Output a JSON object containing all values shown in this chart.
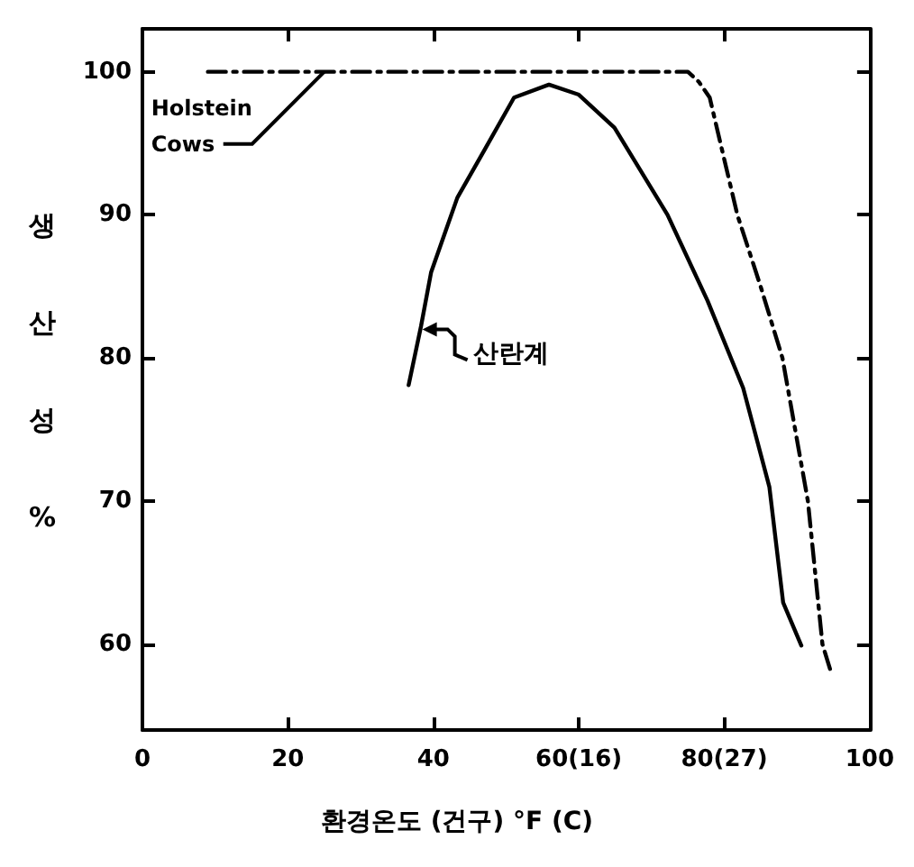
{
  "chart_data": {
    "type": "line",
    "xlabel": "환경온도 (건구) °F (C)",
    "ylabel": "생산성 %",
    "xlim": [
      0,
      100
    ],
    "xticks": [
      0,
      20,
      40,
      {
        "value": 60,
        "label": "60(16)"
      },
      {
        "value": 80,
        "label": "80(27)"
      },
      100
    ],
    "ylim": [
      54,
      103
    ],
    "yticks": [
      60,
      70,
      80,
      90,
      100
    ],
    "grid": false,
    "marker": "none",
    "series": [
      {
        "color": "#000000",
        "line_style": "dashed",
        "x": [
          9,
          75,
          76.5,
          78,
          81.8,
          85,
          88,
          91.5,
          93.5,
          94.7
        ],
        "values": [
          100,
          100,
          99.3,
          98.2,
          90,
          85,
          80,
          70,
          60,
          58
        ]
      },
      {
        "color": "#000000",
        "line_style": "solid",
        "x": [
          36.6,
          38.3,
          39.7,
          43.3,
          47,
          51.1,
          55.9,
          60,
          64.9,
          72.2,
          77.7,
          82.6,
          86.2,
          88.1,
          90.6
        ],
        "values": [
          78.1,
          82.2,
          86,
          91.2,
          94.5,
          98.2,
          99.1,
          98.4,
          96.1,
          90,
          84,
          77.9,
          71,
          62.9,
          59.9
        ]
      }
    ],
    "annotations": [
      {
        "text": "Holstein\nCows",
        "x": 25,
        "y": 100
      },
      {
        "text": "산란계",
        "x": 38,
        "y": 82
      }
    ]
  }
}
